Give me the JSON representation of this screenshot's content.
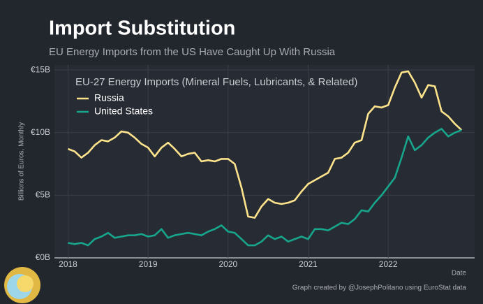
{
  "chart_data": {
    "type": "line",
    "title": "Import Substitution",
    "subtitle": "EU Energy Imports from the US Have Caught Up With Russia",
    "legend_title": "EU-27 Energy Imports (Mineral Fuels, Lubricants, & Related)",
    "ylabel": "Billions of Euros, Monthly",
    "xlabel": "Date",
    "caption": "Graph created by @JosephPolitano using EuroStat data",
    "x": [
      2018,
      2018.083,
      2018.167,
      2018.25,
      2018.333,
      2018.417,
      2018.5,
      2018.583,
      2018.667,
      2018.75,
      2018.833,
      2018.917,
      2019,
      2019.083,
      2019.167,
      2019.25,
      2019.333,
      2019.417,
      2019.5,
      2019.583,
      2019.667,
      2019.75,
      2019.833,
      2019.917,
      2020,
      2020.083,
      2020.167,
      2020.25,
      2020.333,
      2020.417,
      2020.5,
      2020.583,
      2020.667,
      2020.75,
      2020.833,
      2020.917,
      2021,
      2021.083,
      2021.167,
      2021.25,
      2021.333,
      2021.417,
      2021.5,
      2021.583,
      2021.667,
      2021.75,
      2021.833,
      2021.917,
      2022,
      2022.083,
      2022.167,
      2022.25,
      2022.333,
      2022.417,
      2022.5,
      2022.583,
      2022.667,
      2022.75,
      2022.833,
      2022.917
    ],
    "series": [
      {
        "name": "Russia",
        "color": "#fde48c",
        "values": [
          8.7,
          8.5,
          8.0,
          8.4,
          9.0,
          9.4,
          9.3,
          9.6,
          10.1,
          10.0,
          9.6,
          9.1,
          8.8,
          8.1,
          8.8,
          9.2,
          8.7,
          8.1,
          8.3,
          8.4,
          7.7,
          7.8,
          7.7,
          7.9,
          7.9,
          7.5,
          5.6,
          3.3,
          3.2,
          4.1,
          4.7,
          4.4,
          4.3,
          4.4,
          4.6,
          5.3,
          5.9,
          6.2,
          6.5,
          6.8,
          7.9,
          8.0,
          8.4,
          9.2,
          9.4,
          11.5,
          12.1,
          12.0,
          12.2,
          13.6,
          14.8,
          14.9,
          14.0,
          12.8,
          13.8,
          13.7,
          11.7,
          11.3,
          10.7,
          10.2
        ]
      },
      {
        "name": "United States",
        "color": "#17a58c",
        "values": [
          1.2,
          1.1,
          1.2,
          1.0,
          1.5,
          1.7,
          2.0,
          1.6,
          1.7,
          1.8,
          1.8,
          1.9,
          1.7,
          1.8,
          2.3,
          1.6,
          1.8,
          1.9,
          2.0,
          1.9,
          1.8,
          2.1,
          2.3,
          2.6,
          2.1,
          2.0,
          1.5,
          1.0,
          1.0,
          1.3,
          1.8,
          1.5,
          1.7,
          1.3,
          1.5,
          1.7,
          1.5,
          2.3,
          2.3,
          2.2,
          2.5,
          2.8,
          2.7,
          3.1,
          3.8,
          3.7,
          4.4,
          5.0,
          5.7,
          6.4,
          8.0,
          9.7,
          8.6,
          9.0,
          9.6,
          10.0,
          10.3,
          9.7,
          10.0,
          10.2
        ]
      }
    ],
    "xlim": [
      2017.83,
      2023.08
    ],
    "xticks": [
      2018,
      2019,
      2020,
      2021,
      2022
    ],
    "ylim": [
      0,
      15.4
    ],
    "yticks": [
      {
        "value": 0,
        "label": "€0B"
      },
      {
        "value": 5,
        "label": "€5B"
      },
      {
        "value": 10,
        "label": "€10B"
      },
      {
        "value": 15,
        "label": "€15B"
      }
    ],
    "grid": true
  }
}
